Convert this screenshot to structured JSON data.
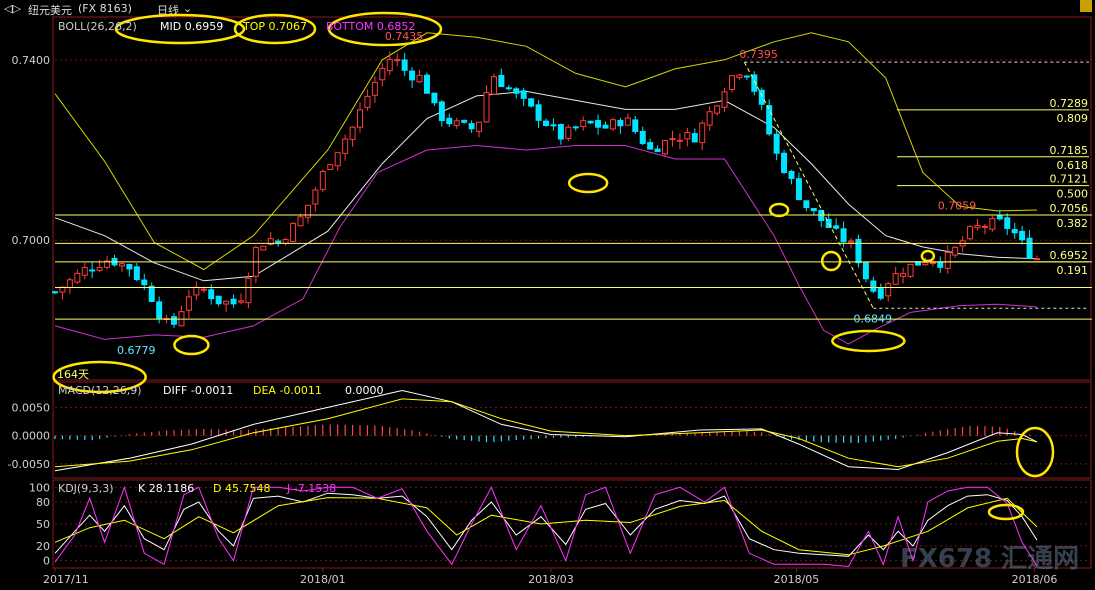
{
  "toolbar": {
    "back_icon": "back-arrows-icon",
    "title": "纽元美元",
    "code": "(FX 8163)",
    "period": "日线",
    "dropdown_icon": "chevron-down-icon"
  },
  "boll": {
    "name": "BOLL(26,26,2)",
    "mid": "MID 0.6959",
    "top": "TOP 0.7067",
    "bottom": "BOTTOM 0.6852",
    "colors": {
      "mid": "#ffffff",
      "top": "#ffff00",
      "bottom": "#ff33ff"
    }
  },
  "macd": {
    "name": "MACD(12,26,9)",
    "diff": "DIFF -0.0011",
    "dea": "DEA -0.0011",
    "macd": "0.0000"
  },
  "kdj": {
    "name": "KDJ(9,3,3)",
    "k": "K 28.1186",
    "d": "D 45.7548",
    "j": "J -7.1538"
  },
  "days_label": "164天",
  "watermark": "FX678 汇通网",
  "colors": {
    "bull": "#ff3b3b",
    "bear": "#00e5ff",
    "fib": "#ffff66",
    "annotation": "#ffe600",
    "grid": "#7a1414"
  },
  "chart_data": [
    {
      "type": "candlestick",
      "title": "纽元美元 (FX 8163) 日线",
      "x_ticks": [
        "2017/11",
        "2018/01",
        "2018/03",
        "2018/05",
        "2018/06"
      ],
      "y_ticks": [
        "0.7400",
        "0.7000"
      ],
      "ylim": [
        0.669,
        0.7495
      ],
      "price_labels": {
        "high1": "0.7435",
        "high2": "0.7395",
        "low1": "0.6779",
        "low2": "0.6849",
        "high3": "0.7059"
      },
      "close_path": [
        [
          0,
          0.6885
        ],
        [
          12,
          0.6935
        ],
        [
          22,
          0.6958
        ],
        [
          30,
          0.694
        ],
        [
          38,
          0.6885
        ],
        [
          44,
          0.6815
        ],
        [
          48,
          0.6815
        ],
        [
          54,
          0.688
        ],
        [
          60,
          0.689
        ],
        [
          66,
          0.6865
        ],
        [
          72,
          0.686
        ],
        [
          76,
          0.688
        ],
        [
          80,
          0.6975
        ],
        [
          86,
          0.7005
        ],
        [
          90,
          0.6995
        ],
        [
          96,
          0.703
        ],
        [
          100,
          0.7055
        ],
        [
          110,
          0.717
        ],
        [
          120,
          0.725
        ],
        [
          126,
          0.732
        ],
        [
          132,
          0.738
        ],
        [
          136,
          0.741
        ],
        [
          142,
          0.737
        ],
        [
          148,
          0.736
        ],
        [
          154,
          0.728
        ],
        [
          160,
          0.726
        ],
        [
          166,
          0.725
        ],
        [
          170,
          0.7245
        ],
        [
          176,
          0.737
        ],
        [
          184,
          0.733
        ],
        [
          190,
          0.73
        ],
        [
          196,
          0.727
        ],
        [
          204,
          0.723
        ],
        [
          214,
          0.726
        ],
        [
          222,
          0.725
        ],
        [
          230,
          0.727
        ],
        [
          240,
          0.72
        ],
        [
          250,
          0.723
        ],
        [
          258,
          0.723
        ],
        [
          266,
          0.73
        ],
        [
          272,
          0.736
        ],
        [
          278,
          0.7385
        ],
        [
          284,
          0.731
        ],
        [
          290,
          0.72
        ],
        [
          296,
          0.714
        ],
        [
          302,
          0.708
        ],
        [
          308,
          0.705
        ],
        [
          316,
          0.701
        ],
        [
          322,
          0.6985
        ],
        [
          328,
          0.6905
        ],
        [
          332,
          0.6875
        ],
        [
          336,
          0.691
        ],
        [
          342,
          0.6935
        ],
        [
          352,
          0.696
        ],
        [
          358,
          0.695
        ],
        [
          364,
          0.6985
        ],
        [
          370,
          0.7025
        ],
        [
          376,
          0.7035
        ],
        [
          382,
          0.704
        ],
        [
          388,
          0.701
        ],
        [
          392,
          0.6975
        ],
        [
          396,
          0.696
        ]
      ],
      "bands": {
        "top": [
          [
            0,
            0.7325
          ],
          [
            20,
            0.7175
          ],
          [
            40,
            0.6995
          ],
          [
            60,
            0.6935
          ],
          [
            80,
            0.701
          ],
          [
            110,
            0.72
          ],
          [
            132,
            0.74
          ],
          [
            150,
            0.746
          ],
          [
            170,
            0.745
          ],
          [
            190,
            0.743
          ],
          [
            210,
            0.737
          ],
          [
            230,
            0.734
          ],
          [
            250,
            0.738
          ],
          [
            270,
            0.74
          ],
          [
            290,
            0.744
          ],
          [
            305,
            0.746
          ],
          [
            320,
            0.744
          ],
          [
            335,
            0.736
          ],
          [
            350,
            0.715
          ],
          [
            365,
            0.7075
          ],
          [
            380,
            0.7065
          ],
          [
            396,
            0.7067
          ]
        ],
        "mid": [
          [
            0,
            0.705
          ],
          [
            20,
            0.701
          ],
          [
            40,
            0.695
          ],
          [
            60,
            0.691
          ],
          [
            80,
            0.692
          ],
          [
            110,
            0.702
          ],
          [
            132,
            0.717
          ],
          [
            150,
            0.727
          ],
          [
            170,
            0.732
          ],
          [
            190,
            0.733
          ],
          [
            210,
            0.731
          ],
          [
            230,
            0.729
          ],
          [
            250,
            0.729
          ],
          [
            270,
            0.731
          ],
          [
            290,
            0.725
          ],
          [
            305,
            0.717
          ],
          [
            320,
            0.708
          ],
          [
            335,
            0.701
          ],
          [
            350,
            0.6985
          ],
          [
            365,
            0.697
          ],
          [
            380,
            0.6962
          ],
          [
            396,
            0.6959
          ]
        ],
        "bottom": [
          [
            0,
            0.681
          ],
          [
            20,
            0.678
          ],
          [
            40,
            0.679
          ],
          [
            60,
            0.6785
          ],
          [
            80,
            0.681
          ],
          [
            100,
            0.687
          ],
          [
            115,
            0.703
          ],
          [
            130,
            0.715
          ],
          [
            150,
            0.72
          ],
          [
            170,
            0.721
          ],
          [
            190,
            0.72
          ],
          [
            210,
            0.721
          ],
          [
            230,
            0.721
          ],
          [
            250,
            0.718
          ],
          [
            270,
            0.718
          ],
          [
            290,
            0.701
          ],
          [
            300,
            0.69
          ],
          [
            310,
            0.68
          ],
          [
            320,
            0.677
          ],
          [
            330,
            0.68
          ],
          [
            345,
            0.684
          ],
          [
            365,
            0.6855
          ],
          [
            380,
            0.6858
          ],
          [
            396,
            0.6852
          ]
        ]
      },
      "fibonacci": [
        {
          "ratio": "0.809",
          "price": "0.7289"
        },
        {
          "ratio": "0.618",
          "price": "0.7185"
        },
        {
          "ratio": "0.500",
          "price": "0.7121"
        },
        {
          "ratio": "0.382",
          "price": "0.7056"
        },
        {
          "ratio": "0.191",
          "price": "0.6952"
        }
      ],
      "horizontal_levels": [
        0.7056,
        0.6993,
        0.6952,
        0.6895,
        0.6825
      ]
    },
    {
      "type": "bar",
      "title": "MACD(12,26,9)",
      "y_ticks": [
        "0.0050",
        "0.0000",
        "-0.0050"
      ],
      "ylim": [
        -0.0075,
        0.0095
      ],
      "histogram": [
        [
          0,
          -0.0006
        ],
        [
          15,
          -0.0008
        ],
        [
          30,
          0.0003
        ],
        [
          45,
          0.0009
        ],
        [
          60,
          0.0012
        ],
        [
          75,
          0.001
        ],
        [
          90,
          0.0014
        ],
        [
          110,
          0.002
        ],
        [
          130,
          0.0018
        ],
        [
          145,
          0.0009
        ],
        [
          160,
          -0.0006
        ],
        [
          175,
          -0.0012
        ],
        [
          185,
          -0.0008
        ],
        [
          200,
          -0.0004
        ],
        [
          215,
          -0.0002
        ],
        [
          230,
          0.0
        ],
        [
          245,
          0.0002
        ],
        [
          260,
          0.0006
        ],
        [
          275,
          0.0009
        ],
        [
          285,
          0.0006
        ],
        [
          295,
          -0.0006
        ],
        [
          310,
          -0.0012
        ],
        [
          325,
          -0.0013
        ],
        [
          340,
          -0.0005
        ],
        [
          355,
          0.0008
        ],
        [
          370,
          0.0018
        ],
        [
          382,
          0.0015
        ],
        [
          390,
          0.0004
        ],
        [
          396,
          0.0
        ]
      ],
      "diff": [
        [
          0,
          -0.0062
        ],
        [
          30,
          -0.004
        ],
        [
          55,
          -0.0015
        ],
        [
          80,
          0.002
        ],
        [
          110,
          0.005
        ],
        [
          140,
          0.008
        ],
        [
          160,
          0.006
        ],
        [
          180,
          0.002
        ],
        [
          200,
          0.0002
        ],
        [
          230,
          -0.0002
        ],
        [
          260,
          0.001
        ],
        [
          285,
          0.0012
        ],
        [
          300,
          -0.0015
        ],
        [
          320,
          -0.0055
        ],
        [
          340,
          -0.006
        ],
        [
          360,
          -0.003
        ],
        [
          380,
          0.0005
        ],
        [
          390,
          0.0002
        ],
        [
          396,
          -0.0011
        ]
      ],
      "dea": [
        [
          0,
          -0.0055
        ],
        [
          30,
          -0.0045
        ],
        [
          55,
          -0.0025
        ],
        [
          80,
          0.0005
        ],
        [
          110,
          0.003
        ],
        [
          140,
          0.0065
        ],
        [
          160,
          0.006
        ],
        [
          180,
          0.003
        ],
        [
          200,
          0.0008
        ],
        [
          230,
          0.0
        ],
        [
          260,
          0.0005
        ],
        [
          285,
          0.001
        ],
        [
          300,
          -0.0005
        ],
        [
          320,
          -0.004
        ],
        [
          340,
          -0.0055
        ],
        [
          360,
          -0.004
        ],
        [
          380,
          -0.001
        ],
        [
          390,
          -0.0005
        ],
        [
          396,
          -0.0011
        ]
      ]
    },
    {
      "type": "line",
      "title": "KDJ(9,3,3)",
      "y_ticks": [
        "100",
        "80",
        "50",
        "20",
        "0"
      ],
      "ylim": [
        -10,
        110
      ],
      "k": [
        [
          0,
          10
        ],
        [
          8,
          40
        ],
        [
          14,
          62
        ],
        [
          20,
          40
        ],
        [
          28,
          75
        ],
        [
          36,
          30
        ],
        [
          44,
          15
        ],
        [
          52,
          70
        ],
        [
          58,
          80
        ],
        [
          66,
          40
        ],
        [
          72,
          20
        ],
        [
          80,
          85
        ],
        [
          90,
          88
        ],
        [
          100,
          80
        ],
        [
          110,
          92
        ],
        [
          120,
          90
        ],
        [
          130,
          85
        ],
        [
          140,
          88
        ],
        [
          150,
          60
        ],
        [
          160,
          15
        ],
        [
          168,
          55
        ],
        [
          176,
          80
        ],
        [
          186,
          35
        ],
        [
          196,
          60
        ],
        [
          206,
          22
        ],
        [
          214,
          70
        ],
        [
          222,
          78
        ],
        [
          232,
          35
        ],
        [
          242,
          70
        ],
        [
          252,
          82
        ],
        [
          262,
          78
        ],
        [
          270,
          88
        ],
        [
          280,
          30
        ],
        [
          290,
          15
        ],
        [
          300,
          10
        ],
        [
          310,
          8
        ],
        [
          320,
          6
        ],
        [
          328,
          35
        ],
        [
          334,
          15
        ],
        [
          340,
          40
        ],
        [
          346,
          20
        ],
        [
          352,
          55
        ],
        [
          360,
          75
        ],
        [
          368,
          88
        ],
        [
          376,
          90
        ],
        [
          384,
          82
        ],
        [
          390,
          60
        ],
        [
          396,
          28
        ]
      ],
      "d": [
        [
          0,
          25
        ],
        [
          14,
          45
        ],
        [
          28,
          55
        ],
        [
          44,
          30
        ],
        [
          58,
          60
        ],
        [
          72,
          38
        ],
        [
          90,
          75
        ],
        [
          110,
          86
        ],
        [
          130,
          85
        ],
        [
          150,
          72
        ],
        [
          162,
          35
        ],
        [
          176,
          62
        ],
        [
          196,
          50
        ],
        [
          214,
          55
        ],
        [
          232,
          52
        ],
        [
          252,
          74
        ],
        [
          270,
          82
        ],
        [
          285,
          40
        ],
        [
          300,
          15
        ],
        [
          320,
          8
        ],
        [
          334,
          20
        ],
        [
          352,
          40
        ],
        [
          368,
          72
        ],
        [
          384,
          85
        ],
        [
          396,
          46
        ]
      ],
      "j": [
        [
          0,
          -2
        ],
        [
          8,
          35
        ],
        [
          14,
          85
        ],
        [
          20,
          25
        ],
        [
          28,
          100
        ],
        [
          36,
          10
        ],
        [
          44,
          -5
        ],
        [
          52,
          90
        ],
        [
          58,
          100
        ],
        [
          66,
          30
        ],
        [
          72,
          0
        ],
        [
          80,
          100
        ],
        [
          90,
          100
        ],
        [
          100,
          95
        ],
        [
          110,
          100
        ],
        [
          120,
          100
        ],
        [
          130,
          85
        ],
        [
          140,
          98
        ],
        [
          150,
          40
        ],
        [
          160,
          -5
        ],
        [
          168,
          50
        ],
        [
          176,
          100
        ],
        [
          186,
          15
        ],
        [
          196,
          75
        ],
        [
          206,
          0
        ],
        [
          214,
          90
        ],
        [
          222,
          100
        ],
        [
          232,
          10
        ],
        [
          242,
          90
        ],
        [
          252,
          100
        ],
        [
          262,
          80
        ],
        [
          270,
          100
        ],
        [
          280,
          10
        ],
        [
          290,
          -5
        ],
        [
          300,
          -5
        ],
        [
          310,
          -5
        ],
        [
          320,
          -8
        ],
        [
          328,
          40
        ],
        [
          334,
          -5
        ],
        [
          340,
          60
        ],
        [
          346,
          0
        ],
        [
          352,
          80
        ],
        [
          360,
          95
        ],
        [
          368,
          100
        ],
        [
          376,
          100
        ],
        [
          384,
          78
        ],
        [
          390,
          25
        ],
        [
          396,
          -7
        ]
      ]
    }
  ]
}
